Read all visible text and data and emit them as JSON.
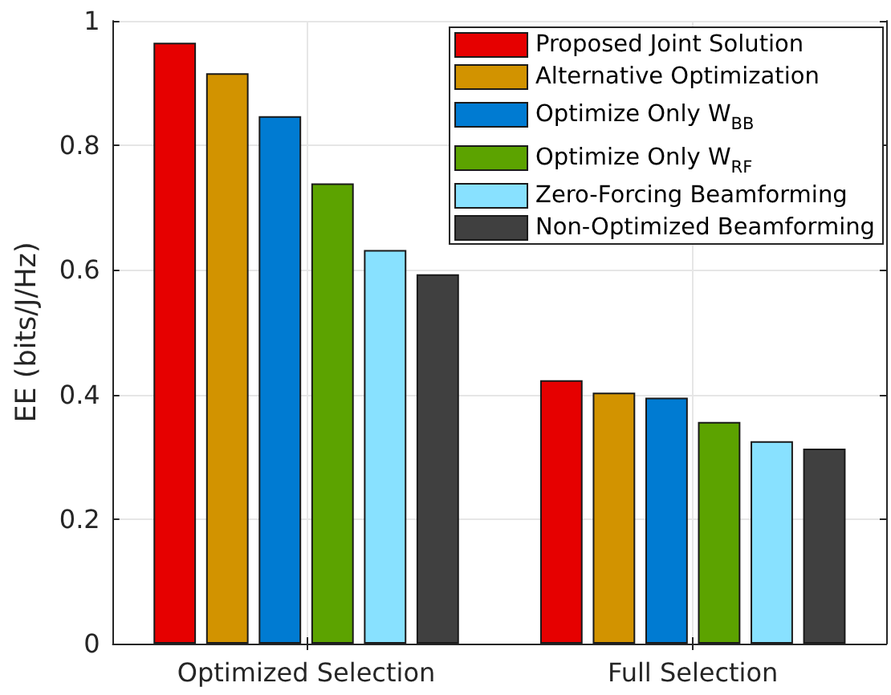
{
  "chart_data": {
    "type": "bar",
    "ylabel": "EE (bits/J/Hz)",
    "categories": [
      "Optimized Selection",
      "Full Selection"
    ],
    "series": [
      {
        "name": "Proposed Joint Solution",
        "color": "#e60000",
        "values": [
          0.965,
          0.423
        ]
      },
      {
        "name": "Alternative Optimization",
        "color": "#d29300",
        "values": [
          0.916,
          0.403
        ]
      },
      {
        "name": "Optimize Only W$_{BB}$",
        "color": "#007bd2",
        "values": [
          0.847,
          0.395
        ]
      },
      {
        "name": "Optimize Only W$_{RF}$",
        "color": "#5ca300",
        "values": [
          0.739,
          0.356
        ]
      },
      {
        "name": "Zero-Forcing Beamforming",
        "color": "#88e1ff",
        "values": [
          0.632,
          0.325
        ]
      },
      {
        "name": "Non-Optimized Beamforming",
        "color": "#404040",
        "values": [
          0.593,
          0.313
        ]
      }
    ],
    "ylim": [
      0,
      1
    ],
    "yticks": [
      0,
      0.2,
      0.4,
      0.6,
      0.8,
      1
    ],
    "grid": true,
    "legend": "top right"
  }
}
